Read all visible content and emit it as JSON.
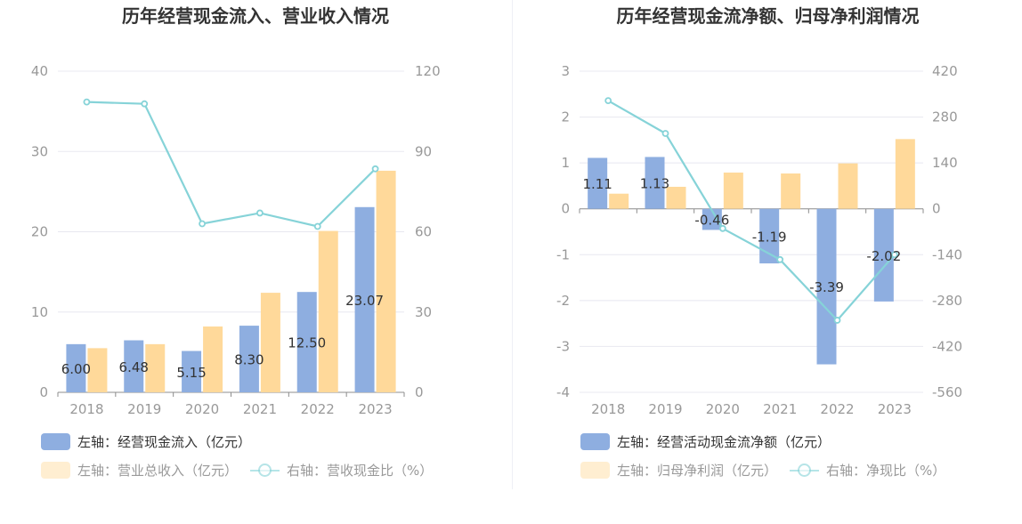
{
  "colors": {
    "bar1": "#8eaee0",
    "bar2": "#ffd99a",
    "line": "#86d3d8",
    "grid": "#e8e8f0",
    "axis": "#999999"
  },
  "chart_data": [
    {
      "type": "bar",
      "title": "历年经营现金流入、营业收入情况",
      "categories": [
        "2018",
        "2019",
        "2020",
        "2021",
        "2022",
        "2023"
      ],
      "left_axis": {
        "ticks": [
          "0",
          "10",
          "20",
          "30",
          "40"
        ],
        "min": 0,
        "max": 40
      },
      "right_axis": {
        "ticks": [
          "0",
          "30",
          "60",
          "90",
          "120"
        ],
        "min": 0,
        "max": 120
      },
      "series": [
        {
          "name": "经营现金流入（亿元）",
          "axis": "left",
          "kind": "bar",
          "values": [
            6.0,
            6.48,
            5.15,
            8.3,
            12.5,
            23.07
          ],
          "labels": [
            "6.00",
            "6.48",
            "5.15",
            "8.30",
            "12.50",
            "23.07"
          ]
        },
        {
          "name": "营业总收入（亿元）",
          "axis": "left",
          "kind": "bar",
          "values": [
            5.5,
            6.0,
            8.2,
            12.4,
            20.1,
            27.6
          ]
        },
        {
          "name": "营收现金比（%）",
          "axis": "right",
          "kind": "line",
          "values": [
            108.5,
            107.8,
            63.0,
            67.0,
            62.0,
            83.5
          ]
        }
      ],
      "legend": [
        {
          "prefix": "左轴：",
          "name": "经营现金流入（亿元）"
        },
        {
          "prefix": "左轴：",
          "name": "营业总收入（亿元）"
        },
        {
          "prefix": "右轴：",
          "name": "营收现金比（%）"
        }
      ]
    },
    {
      "type": "bar",
      "title": "历年经营现金流净额、归母净利润情况",
      "categories": [
        "2018",
        "2019",
        "2020",
        "2021",
        "2022",
        "2023"
      ],
      "left_axis": {
        "ticks": [
          "-4",
          "-3",
          "-2",
          "-1",
          "0",
          "1",
          "2",
          "3"
        ],
        "min": -4,
        "max": 3
      },
      "right_axis": {
        "ticks": [
          "-560",
          "-420",
          "-280",
          "-140",
          "0",
          "140",
          "280",
          "420"
        ],
        "min": -560,
        "max": 420
      },
      "series": [
        {
          "name": "经营活动现金流净额（亿元）",
          "axis": "left",
          "kind": "bar",
          "values": [
            1.11,
            1.13,
            -0.46,
            -1.19,
            -3.39,
            -2.02
          ],
          "labels": [
            "1.11",
            "1.13",
            "-0.46",
            "-1.19",
            "-3.39",
            "-2.02"
          ]
        },
        {
          "name": "归母净利润（亿元）",
          "axis": "left",
          "kind": "bar",
          "values": [
            0.33,
            0.48,
            0.79,
            0.77,
            0.99,
            1.52
          ]
        },
        {
          "name": "净现比（%）",
          "axis": "right",
          "kind": "line",
          "values": [
            330,
            230,
            -60,
            -155,
            -340,
            -140
          ]
        }
      ],
      "legend": [
        {
          "prefix": "左轴：",
          "name": "经营活动现金流净额（亿元）"
        },
        {
          "prefix": "左轴：",
          "name": "归母净利润（亿元）"
        },
        {
          "prefix": "右轴：",
          "name": "净现比（%）"
        }
      ]
    }
  ]
}
